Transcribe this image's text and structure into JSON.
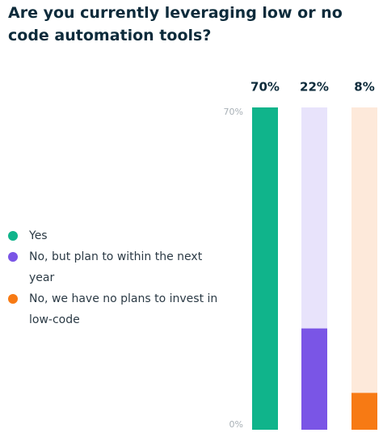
{
  "chart_data": {
    "type": "bar",
    "title": "Are you currently leveraging low or no code automation tools?",
    "categories": [
      "Yes",
      "No, but plan to within the next year",
      "No, we have no plans to invest in low-code"
    ],
    "values": [
      70,
      22,
      8
    ],
    "value_labels": [
      "70%",
      "22%",
      "8%"
    ],
    "colors": [
      "#10b48b",
      "#7a55e6",
      "#f77a14"
    ],
    "track_colors": [
      "#d5f2ea",
      "#e8e3fb",
      "#fde9da"
    ],
    "ylim": [
      0,
      70
    ],
    "yticks": [
      {
        "value": 0,
        "label": "0%"
      },
      {
        "value": 70,
        "label": "70%"
      }
    ],
    "legend": "left"
  }
}
